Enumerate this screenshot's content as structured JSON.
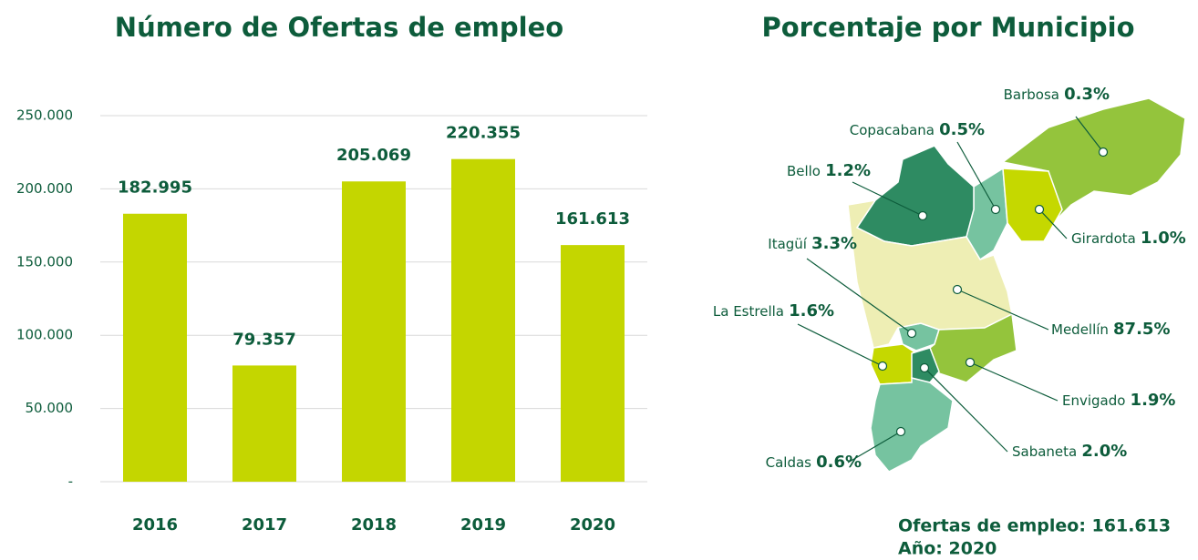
{
  "chart_data": [
    {
      "type": "bar",
      "title": "Número de Ofertas de empleo",
      "categories": [
        "2016",
        "2017",
        "2018",
        "2019",
        "2020"
      ],
      "values": [
        182995,
        79357,
        205069,
        220355,
        161613
      ],
      "value_labels": [
        "182.995",
        "79.357",
        "205.069",
        "220.355",
        "161.613"
      ],
      "color": "#c4d600",
      "ylim": [
        0,
        250000
      ],
      "yticks": [
        {
          "value": 0,
          "label": "-"
        },
        {
          "value": 50000,
          "label": "50.000"
        },
        {
          "value": 100000,
          "label": "100.000"
        },
        {
          "value": 150000,
          "label": "150.000"
        },
        {
          "value": 200000,
          "label": "200.000"
        },
        {
          "value": 250000,
          "label": "250.000"
        }
      ],
      "grid": true
    },
    {
      "type": "map",
      "title": "Porcentaje por Municipio",
      "regions": [
        "Barbosa",
        "Copacabana",
        "Bello",
        "Girardota",
        "Itagüí",
        "Medellín",
        "La Estrella",
        "Envigado",
        "Caldas",
        "Sabaneta"
      ],
      "values": [
        0.3,
        0.5,
        1.2,
        1.0,
        3.3,
        87.5,
        1.6,
        1.9,
        0.6,
        2.0
      ],
      "value_labels": [
        "0.3%",
        "0.5%",
        "1.2%",
        "1.0%",
        "3.3%",
        "87.5%",
        "1.6%",
        "1.9%",
        "0.6%",
        "2.0%"
      ],
      "colors": [
        "#94c43c",
        "#76c3a0",
        "#2e8b62",
        "#c5d800",
        "#76c3a0",
        "#eeeeb4",
        "#c5d800",
        "#94c43c",
        "#76c3a0",
        "#2e8b62"
      ],
      "annotations": [
        "Ofertas de empleo: 161.613",
        "Año: 2020"
      ]
    }
  ]
}
